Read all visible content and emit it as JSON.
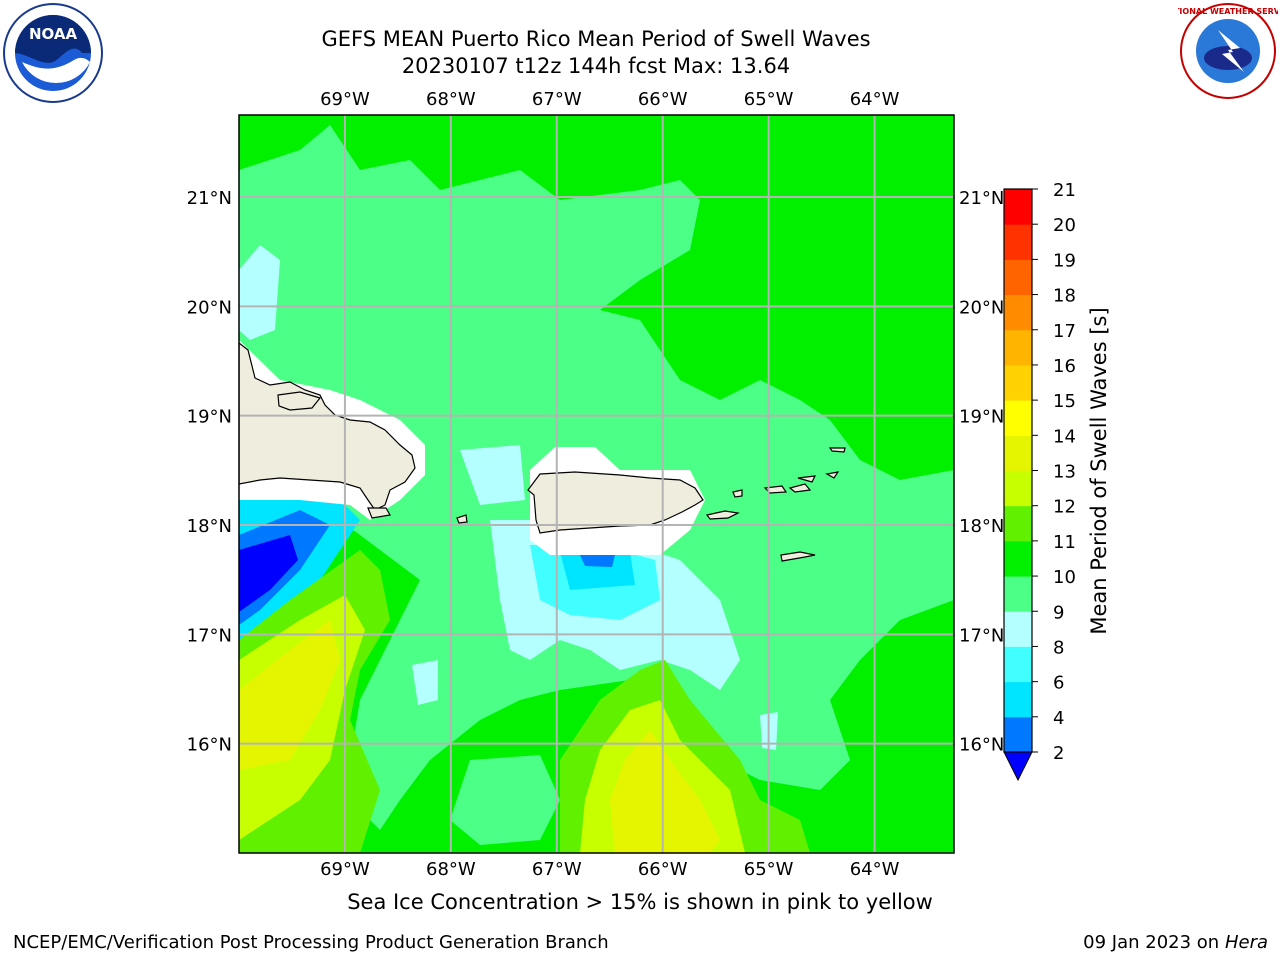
{
  "header": {
    "title_line1": "GEFS MEAN Puerto Rico Mean Period of Swell Waves",
    "title_line2": "20230107 t12z 144h fcst   Max: 13.64"
  },
  "logos": {
    "left": "NOAA",
    "right": "NATIONAL WEATHER SERVICE"
  },
  "map": {
    "lon_ticks": [
      "69°W",
      "68°W",
      "67°W",
      "66°W",
      "65°W",
      "64°W"
    ],
    "lat_ticks": [
      "21°N",
      "20°N",
      "19°N",
      "18°N",
      "17°N",
      "16°N"
    ],
    "extent": {
      "lon_min": -70.0,
      "lon_max": -63.25,
      "lat_min": 15.0,
      "lat_max": 21.75
    },
    "land_color": "#efedde",
    "grid_color": "#b4b4b4"
  },
  "colorbar": {
    "label": "Mean Period of Swell Waves [s]",
    "tick_labels": [
      "2",
      "4",
      "6",
      "8",
      "9",
      "10",
      "11",
      "12",
      "13",
      "14",
      "15",
      "16",
      "17",
      "18",
      "19",
      "20",
      "21"
    ],
    "colors": [
      "#0000ff",
      "#0078ff",
      "#00e5ff",
      "#42ffff",
      "#b4ffff",
      "#4cff86",
      "#00f000",
      "#60f000",
      "#c8ff00",
      "#e5f500",
      "#ffff00",
      "#ffd200",
      "#ffb400",
      "#ff8c00",
      "#ff6400",
      "#ff3200",
      "#ff0000"
    ]
  },
  "caption": "Sea Ice Concentration > 15% is shown in pink to yellow",
  "footer": {
    "left": "NCEP/EMC/Verification Post Processing Product Generation Branch",
    "right_date": "09 Jan 2023 on",
    "right_machine": "Hera"
  }
}
